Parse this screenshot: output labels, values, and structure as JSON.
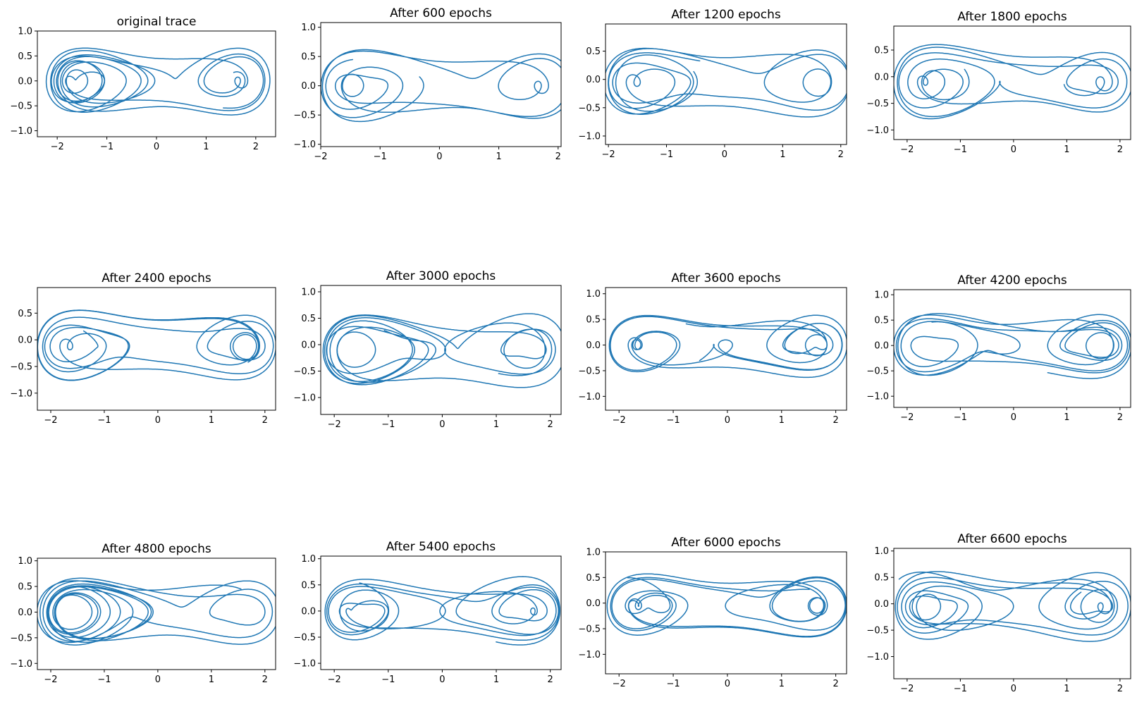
{
  "figure": {
    "line_color": "#1f77b4",
    "background": "#ffffff"
  },
  "chart_data": [
    {
      "type": "line",
      "title": "original trace",
      "xlim": [
        -2.4,
        2.4
      ],
      "ylim": [
        -1.12,
        1.0
      ],
      "xticks": [
        -2,
        -1,
        0,
        1,
        2
      ],
      "yticks": [
        -1.0,
        -0.5,
        0.0,
        0.5,
        1.0
      ],
      "series": [
        {
          "attractor": {
            "scale": 1.0,
            "offset": [
              0,
              0
            ]
          },
          "steps": 4000,
          "seed": 1,
          "x0": [
            1.0,
            0.2,
            0.1
          ]
        }
      ]
    },
    {
      "type": "line",
      "title": "After 600 epochs",
      "xlim": [
        -2.0,
        2.05
      ],
      "ylim": [
        -1.04,
        1.08
      ],
      "xticks": [
        -2,
        -1,
        0,
        1,
        2
      ],
      "yticks": [
        -1.0,
        -0.5,
        0.0,
        0.5,
        1.0
      ],
      "series": [
        {
          "attractor": {
            "scale": 0.95,
            "offset": [
              0.1,
              0
            ]
          },
          "steps": 2500,
          "seed": 2,
          "x0": [
            -0.3,
            0.2,
            0.1
          ]
        }
      ]
    },
    {
      "type": "line",
      "title": "After 1200 epochs",
      "xlim": [
        -2.05,
        2.1
      ],
      "ylim": [
        -1.15,
        0.98
      ],
      "xticks": [
        -2,
        -1,
        0,
        1,
        2
      ],
      "yticks": [
        -1.0,
        -0.5,
        0.0,
        0.5
      ],
      "series": [
        {
          "attractor": {
            "scale": 0.95,
            "offset": [
              0.05,
              -0.05
            ]
          },
          "steps": 2800,
          "seed": 3,
          "x0": [
            -0.4,
            0.25,
            0.1
          ]
        }
      ]
    },
    {
      "type": "line",
      "title": "After 1800 epochs",
      "xlim": [
        -2.25,
        2.2
      ],
      "ylim": [
        -1.18,
        0.95
      ],
      "xticks": [
        -2,
        -1,
        0,
        1,
        2
      ],
      "yticks": [
        -1.0,
        -0.5,
        0.0,
        0.5
      ],
      "series": [
        {
          "attractor": {
            "scale": 1.0,
            "offset": [
              0,
              -0.1
            ]
          },
          "steps": 3200,
          "seed": 4,
          "x0": [
            -0.6,
            0.3,
            0.1
          ]
        }
      ]
    },
    {
      "type": "line",
      "title": "After 2400 epochs",
      "xlim": [
        -2.25,
        2.2
      ],
      "ylim": [
        -1.32,
        0.98
      ],
      "xticks": [
        -2,
        -1,
        0,
        1,
        2
      ],
      "yticks": [
        -1.0,
        -0.5,
        0.0,
        0.5
      ],
      "series": [
        {
          "attractor": {
            "scale": 1.0,
            "offset": [
              0,
              -0.12
            ]
          },
          "steps": 3600,
          "seed": 5,
          "x0": [
            -0.9,
            0.35,
            0.1
          ]
        }
      ]
    },
    {
      "type": "line",
      "title": "After 3000 epochs",
      "xlim": [
        -2.25,
        2.2
      ],
      "ylim": [
        -1.32,
        1.12
      ],
      "xticks": [
        -2,
        -1,
        0,
        1,
        2
      ],
      "yticks": [
        -1.0,
        -0.5,
        0.0,
        0.5,
        1.0
      ],
      "series": [
        {
          "attractor": {
            "scale": 1.0,
            "offset": [
              0,
              -0.1
            ]
          },
          "steps": 3600,
          "seed": 6,
          "x0": [
            -0.7,
            0.45,
            0.1
          ]
        }
      ]
    },
    {
      "type": "line",
      "title": "After 3600 epochs",
      "xlim": [
        -2.25,
        2.2
      ],
      "ylim": [
        -1.27,
        1.12
      ],
      "xticks": [
        -2,
        -1,
        0,
        1,
        2
      ],
      "yticks": [
        -1.0,
        -0.5,
        0.0,
        0.5,
        1.0
      ],
      "series": [
        {
          "attractor": {
            "scale": 1.0,
            "offset": [
              0,
              0
            ]
          },
          "steps": 3800,
          "seed": 7,
          "x0": [
            -0.5,
            0.5,
            0.1
          ]
        }
      ]
    },
    {
      "type": "line",
      "title": "After 4200 epochs",
      "xlim": [
        -2.25,
        2.2
      ],
      "ylim": [
        -1.22,
        1.1
      ],
      "xticks": [
        -2,
        -1,
        0,
        1,
        2
      ],
      "yticks": [
        -1.0,
        -0.5,
        0.0,
        0.5,
        1.0
      ],
      "series": [
        {
          "attractor": {
            "scale": 1.0,
            "offset": [
              0,
              0
            ]
          },
          "steps": 3800,
          "seed": 8,
          "x0": [
            -1.0,
            0.55,
            0.1
          ]
        }
      ]
    },
    {
      "type": "line",
      "title": "After 4800 epochs",
      "xlim": [
        -2.25,
        2.2
      ],
      "ylim": [
        -1.12,
        1.05
      ],
      "xticks": [
        -2,
        -1,
        0,
        1,
        2
      ],
      "yticks": [
        -1.0,
        -0.5,
        0.0,
        0.5,
        1.0
      ],
      "series": [
        {
          "attractor": {
            "scale": 1.0,
            "offset": [
              0,
              0
            ]
          },
          "steps": 4000,
          "seed": 9,
          "x0": [
            -1.0,
            0.6,
            0.1
          ]
        }
      ]
    },
    {
      "type": "line",
      "title": "After 5400 epochs",
      "xlim": [
        -2.25,
        2.2
      ],
      "ylim": [
        -1.12,
        1.05
      ],
      "xticks": [
        -2,
        -1,
        0,
        1,
        2
      ],
      "yticks": [
        -1.0,
        -0.5,
        0.0,
        0.5,
        1.0
      ],
      "series": [
        {
          "attractor": {
            "scale": 1.0,
            "offset": [
              0,
              0
            ]
          },
          "steps": 4000,
          "seed": 10,
          "x0": [
            -1.0,
            0.65,
            0.1
          ]
        }
      ]
    },
    {
      "type": "line",
      "title": "After 6000 epochs",
      "xlim": [
        -2.25,
        2.2
      ],
      "ylim": [
        -1.38,
        1.0
      ],
      "xticks": [
        -2,
        -1,
        0,
        1,
        2
      ],
      "yticks": [
        -1.0,
        -0.5,
        0.0,
        0.5,
        1.0
      ],
      "series": [
        {
          "attractor": {
            "scale": 1.0,
            "offset": [
              0,
              -0.05
            ]
          },
          "steps": 4000,
          "seed": 11,
          "x0": [
            -1.2,
            0.65,
            0.1
          ]
        }
      ]
    },
    {
      "type": "line",
      "title": "After 6600 epochs",
      "xlim": [
        -2.25,
        2.2
      ],
      "ylim": [
        -1.42,
        1.05
      ],
      "xticks": [
        -2,
        -1,
        0,
        1,
        2
      ],
      "yticks": [
        -1.0,
        -0.5,
        0.0,
        0.5,
        1.0
      ],
      "series": [
        {
          "attractor": {
            "scale": 1.0,
            "offset": [
              0,
              -0.05
            ]
          },
          "steps": 4000,
          "seed": 12,
          "x0": [
            -1.4,
            0.6,
            0.1
          ]
        }
      ]
    }
  ]
}
